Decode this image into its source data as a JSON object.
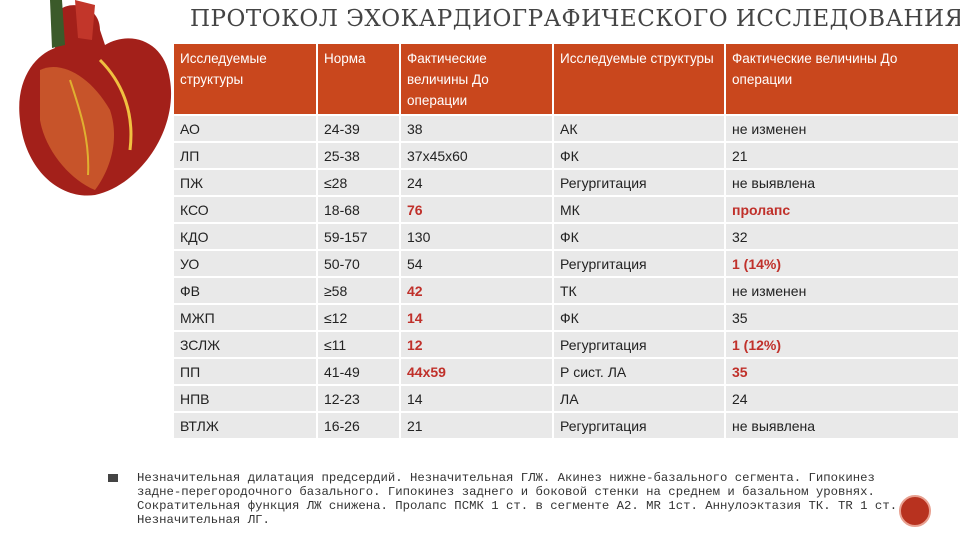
{
  "title": "ПРОТОКОЛ ЭХОКАРДИОГРАФИЧЕСКОГО ИССЛЕДОВАНИЯ",
  "table": {
    "header": [
      "Исследуемые структуры",
      "Норма",
      "Фактические величины До операции",
      "Исследуемые структуры",
      "Фактические величины До операции"
    ],
    "rows": [
      [
        "АО",
        "24-39",
        "38",
        "АК",
        "не изменен"
      ],
      [
        "ЛП",
        "25-38",
        "37х45х60",
        "ФК",
        "21"
      ],
      [
        "ПЖ",
        "≤28",
        "24",
        "Регургитация",
        "не выявлена"
      ],
      [
        "КСО",
        "18-68",
        "76",
        "МК",
        "пролапс"
      ],
      [
        "КДО",
        "59-157",
        "130",
        "ФК",
        "32"
      ],
      [
        "УО",
        "50-70",
        "54",
        "Регургитация",
        "1 (14%)"
      ],
      [
        "ФВ",
        "≥58",
        "42",
        "ТК",
        "не изменен"
      ],
      [
        "МЖП",
        "≤12",
        "14",
        "ФК",
        "35"
      ],
      [
        "ЗСЛЖ",
        "≤11",
        "12",
        "Регургитация",
        "1 (12%)"
      ],
      [
        "ПП",
        "41-49",
        "44х59",
        "Р сист. ЛА",
        "35"
      ],
      [
        "НПВ",
        "12-23",
        "14",
        "ЛА",
        "24"
      ],
      [
        "ВТЛЖ",
        "16-26",
        "21",
        "Регургитация",
        "не выявлена"
      ]
    ]
  },
  "note": {
    "lines": [
      "Незначительная дилатация предсердий. Незначительная ГЛЖ. Акинез нижне-базального сегмента. Гипокинез",
      "задне-перегородочного базального. Гипокинез заднего и боковой стенки на среднем и базальном уровнях.",
      "Сократительная функция ЛЖ снижена. Пролапс ПСМК 1 ст. в сегменте А2. MR 1ст. Аннулоэктазия ТК. TR 1 ст.",
      "Незначительная ЛГ."
    ]
  }
}
